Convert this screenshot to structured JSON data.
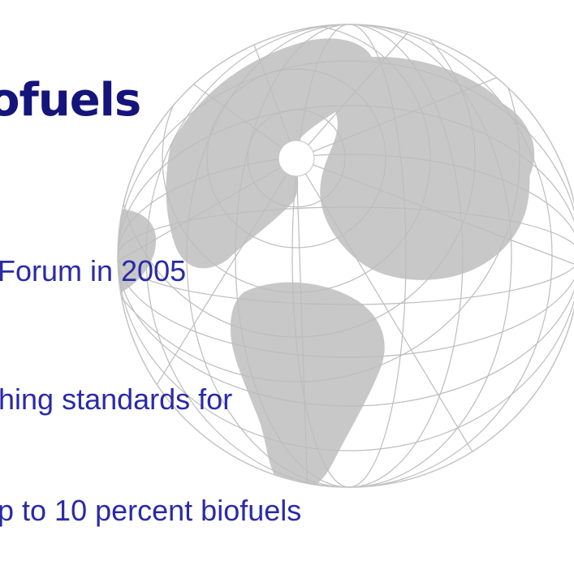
{
  "slide": {
    "title": "ofuels",
    "lines": [
      "Forum in 2005",
      "hing standards for",
      "p to 10 percent biofuels"
    ]
  },
  "background": {
    "image": "globe-map",
    "land_color": "#c8c8c8",
    "grid_color": "#bdbdbd"
  },
  "colors": {
    "title": "#14147a",
    "text": "#2a2aa8",
    "background": "#ffffff"
  }
}
